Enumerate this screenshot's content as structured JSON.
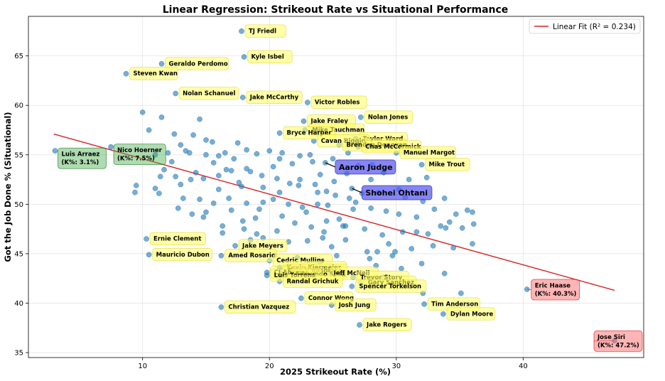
{
  "chart_data": {
    "type": "scatter",
    "title": "Linear Regression: Strikeout Rate vs Situational Performance",
    "xlabel": "2025 Strikeout Rate (%)",
    "ylabel": "Got the Job Done % (Situational)",
    "xlim": [
      1.0,
      49.5
    ],
    "ylim": [
      34.5,
      69.0
    ],
    "xticks": [
      10,
      20,
      30,
      40
    ],
    "yticks": [
      35,
      40,
      45,
      50,
      55,
      60,
      65
    ],
    "grid": true,
    "legend": {
      "label": "Linear Fit (R² = 0.234)",
      "position": "top-right",
      "color": "#d62728"
    },
    "fit": {
      "x0": 3.0,
      "y0": 57.1,
      "x1": 47.2,
      "y1": 41.3
    },
    "point_color": "#1f77b4",
    "labeled_points": [
      {
        "name": "TJ Friedl",
        "x": 17.8,
        "y": 67.5,
        "style": "yellow"
      },
      {
        "name": "Kyle Isbel",
        "x": 18.0,
        "y": 64.9,
        "style": "yellow"
      },
      {
        "name": "Geraldo Perdomo",
        "x": 11.5,
        "y": 64.2,
        "style": "yellow"
      },
      {
        "name": "Steven Kwan",
        "x": 8.7,
        "y": 63.2,
        "style": "yellow"
      },
      {
        "name": "Nolan Schanuel",
        "x": 12.6,
        "y": 61.2,
        "style": "yellow"
      },
      {
        "name": "Jake McCarthy",
        "x": 17.9,
        "y": 60.8,
        "style": "yellow"
      },
      {
        "name": "Victor Robles",
        "x": 23.0,
        "y": 60.3,
        "style": "yellow"
      },
      {
        "name": "Nolan Jones",
        "x": 27.2,
        "y": 58.8,
        "style": "yellow"
      },
      {
        "name": "Jake Fraley",
        "x": 22.7,
        "y": 58.4,
        "style": "yellow"
      },
      {
        "name": "Mike Tauchman",
        "x": 22.8,
        "y": 57.5,
        "style": "yellow"
      },
      {
        "name": "Bryce Harper",
        "x": 20.8,
        "y": 57.2,
        "style": "yellow"
      },
      {
        "name": "Taylor Ward",
        "x": 26.8,
        "y": 56.6,
        "style": "yellow"
      },
      {
        "name": "Cavan Biggio",
        "x": 23.5,
        "y": 56.4,
        "style": "yellow"
      },
      {
        "name": "Brendan Donovan",
        "x": 25.5,
        "y": 56.0,
        "style": "yellow"
      },
      {
        "name": "Chas McCormick",
        "x": 27.0,
        "y": 55.8,
        "style": "yellow"
      },
      {
        "name": "Manuel Margot",
        "x": 30.0,
        "y": 55.2,
        "style": "yellow"
      },
      {
        "name": "Mike Trout",
        "x": 32.0,
        "y": 54.0,
        "style": "yellow"
      },
      {
        "name": "Aaron Judge",
        "x": 24.4,
        "y": 54.2,
        "style": "blue"
      },
      {
        "name": "Shohei Ohtani",
        "x": 26.5,
        "y": 51.6,
        "style": "blue"
      },
      {
        "name": "Luis Arraez",
        "x": 3.1,
        "y": 55.4,
        "note": "(K%: 3.1%)",
        "style": "green"
      },
      {
        "name": "Nico Hoerner",
        "x": 7.5,
        "y": 55.8,
        "note": "(K%: 7.5%)",
        "style": "green"
      },
      {
        "name": "Ernie Clement",
        "x": 10.3,
        "y": 46.5,
        "style": "yellow"
      },
      {
        "name": "Mauricio Dubon",
        "x": 10.5,
        "y": 44.9,
        "style": "yellow"
      },
      {
        "name": "Jake Meyers",
        "x": 17.3,
        "y": 45.8,
        "style": "yellow"
      },
      {
        "name": "Amed Rosario",
        "x": 16.2,
        "y": 44.8,
        "style": "yellow"
      },
      {
        "name": "Cedric Mullins",
        "x": 20.0,
        "y": 44.3,
        "style": "yellow"
      },
      {
        "name": "Kevin Kiermaier",
        "x": 20.8,
        "y": 43.6,
        "style": "yellow"
      },
      {
        "name": "Kyle Higashioka",
        "x": 20.9,
        "y": 43.3,
        "style": "yellow"
      },
      {
        "name": "CJ Abrams",
        "x": 19.8,
        "y": 43.1,
        "style": "yellow"
      },
      {
        "name": "Edmundo Sosa",
        "x": 21.5,
        "y": 42.9,
        "style": "yellow"
      },
      {
        "name": "Jeff McNeil",
        "x": 24.5,
        "y": 43.0,
        "style": "yellow"
      },
      {
        "name": "Luis Torrens",
        "x": 19.8,
        "y": 42.8,
        "style": "yellow"
      },
      {
        "name": "Trevor Story",
        "x": 26.6,
        "y": 42.6,
        "style": "yellow"
      },
      {
        "name": "Randal Grichuk",
        "x": 20.8,
        "y": 42.2,
        "style": "yellow"
      },
      {
        "name": "Gary Sanchez",
        "x": 27.2,
        "y": 42.1,
        "style": "yellow"
      },
      {
        "name": "Spencer Torkelson",
        "x": 26.5,
        "y": 41.7,
        "style": "yellow"
      },
      {
        "name": "Connor Wong",
        "x": 22.5,
        "y": 40.5,
        "style": "yellow"
      },
      {
        "name": "Christian Vazquez",
        "x": 16.2,
        "y": 39.6,
        "style": "yellow"
      },
      {
        "name": "Josh Jung",
        "x": 24.9,
        "y": 39.8,
        "style": "yellow"
      },
      {
        "name": "Tim Anderson",
        "x": 32.2,
        "y": 39.9,
        "style": "yellow"
      },
      {
        "name": "Dylan Moore",
        "x": 33.7,
        "y": 38.9,
        "style": "yellow"
      },
      {
        "name": "Jake Rogers",
        "x": 27.1,
        "y": 37.8,
        "style": "yellow"
      },
      {
        "name": "Eric Haase",
        "x": 40.3,
        "y": 41.4,
        "note": "(K%: 40.3%)",
        "style": "red"
      },
      {
        "name": "Jose Siri",
        "x": 47.2,
        "y": 36.2,
        "note": "(K%: 47.2%)",
        "style": "red"
      }
    ],
    "points": [
      [
        10.0,
        59.3
      ],
      [
        11.5,
        58.8
      ],
      [
        12.5,
        57.1
      ],
      [
        14.5,
        58.6
      ],
      [
        10.5,
        57.5
      ],
      [
        13.0,
        56.0
      ],
      [
        14.0,
        57.0
      ],
      [
        15.5,
        56.3
      ],
      [
        16.5,
        55.2
      ],
      [
        17.5,
        56.2
      ],
      [
        12.0,
        55.2
      ],
      [
        15.0,
        55.0
      ],
      [
        11.7,
        53.5
      ],
      [
        12.3,
        54.3
      ],
      [
        13.4,
        55.4
      ],
      [
        16.0,
        54.9
      ],
      [
        17.0,
        53.4
      ],
      [
        18.2,
        55.5
      ],
      [
        19.0,
        55.1
      ],
      [
        20.0,
        55.4
      ],
      [
        21.0,
        55.2
      ],
      [
        21.8,
        54.1
      ],
      [
        23.2,
        55.0
      ],
      [
        25.0,
        54.6
      ],
      [
        26.2,
        55.2
      ],
      [
        28.1,
        54.0
      ],
      [
        29.0,
        53.2
      ],
      [
        31.0,
        52.5
      ],
      [
        32.4,
        52.7
      ],
      [
        30.2,
        51.5
      ],
      [
        9.5,
        51.9
      ],
      [
        11.0,
        51.6
      ],
      [
        11.4,
        52.8
      ],
      [
        12.6,
        52.8
      ],
      [
        13.8,
        52.5
      ],
      [
        14.8,
        52.6
      ],
      [
        16.0,
        52.9
      ],
      [
        17.6,
        52.2
      ],
      [
        18.5,
        53.3
      ],
      [
        19.4,
        52.9
      ],
      [
        20.6,
        52.6
      ],
      [
        21.6,
        52.1
      ],
      [
        22.3,
        51.9
      ],
      [
        23.6,
        52.0
      ],
      [
        25.1,
        52.3
      ],
      [
        26.3,
        50.6
      ],
      [
        27.3,
        51.1
      ],
      [
        28.6,
        51.2
      ],
      [
        30.7,
        50.7
      ],
      [
        32.1,
        50.3
      ],
      [
        9.4,
        51.2
      ],
      [
        11.3,
        51.1
      ],
      [
        13.2,
        50.6
      ],
      [
        14.5,
        50.5
      ],
      [
        15.6,
        50.1
      ],
      [
        16.8,
        50.6
      ],
      [
        18.2,
        50.1
      ],
      [
        19.5,
        50.2
      ],
      [
        20.3,
        50.5
      ],
      [
        21.5,
        50.0
      ],
      [
        22.6,
        49.7
      ],
      [
        23.8,
        50.0
      ],
      [
        24.6,
        49.9
      ],
      [
        26.6,
        49.5
      ],
      [
        28.0,
        49.6
      ],
      [
        29.2,
        49.3
      ],
      [
        31.6,
        48.7
      ],
      [
        33.8,
        50.6
      ],
      [
        34.7,
        49.0
      ],
      [
        36.0,
        49.2
      ],
      [
        12.8,
        49.6
      ],
      [
        14.8,
        48.7
      ],
      [
        16.3,
        47.8
      ],
      [
        17.9,
        48.3
      ],
      [
        18.9,
        48.6
      ],
      [
        20.6,
        47.3
      ],
      [
        22.0,
        48.1
      ],
      [
        23.3,
        47.7
      ],
      [
        24.3,
        47.2
      ],
      [
        25.8,
        47.8
      ],
      [
        27.5,
        47.5
      ],
      [
        28.9,
        46.9
      ],
      [
        30.5,
        47.2
      ],
      [
        32.5,
        47.0
      ],
      [
        33.5,
        47.8
      ],
      [
        35.2,
        47.6
      ],
      [
        36.1,
        48.0
      ],
      [
        13.9,
        49.0
      ],
      [
        16.3,
        47.1
      ],
      [
        18.5,
        46.4
      ],
      [
        19.5,
        46.6
      ],
      [
        21.5,
        46.2
      ],
      [
        23.0,
        46.3
      ],
      [
        24.9,
        45.7
      ],
      [
        26.0,
        46.4
      ],
      [
        27.7,
        45.2
      ],
      [
        29.4,
        46.0
      ],
      [
        31.2,
        45.5
      ],
      [
        32.9,
        45.8
      ],
      [
        34.5,
        45.6
      ],
      [
        36.0,
        46.0
      ],
      [
        20.4,
        44.8
      ],
      [
        22.2,
        44.6
      ],
      [
        24.0,
        44.2
      ],
      [
        25.3,
        44.8
      ],
      [
        27.9,
        44.5
      ],
      [
        29.7,
        44.8
      ],
      [
        32.0,
        44.0
      ],
      [
        33.8,
        43.0
      ],
      [
        28.4,
        43.8
      ],
      [
        30.4,
        43.5
      ],
      [
        29.0,
        42.6
      ],
      [
        30.1,
        42.0
      ],
      [
        32.1,
        41.0
      ],
      [
        35.1,
        41.0
      ],
      [
        15.0,
        56.5
      ],
      [
        13.7,
        55.2
      ],
      [
        15.6,
        54.2
      ],
      [
        17.2,
        54.6
      ],
      [
        20.8,
        54.6
      ],
      [
        22.4,
        54.9
      ],
      [
        23.4,
        54.3
      ],
      [
        18.2,
        53.6
      ],
      [
        14.2,
        53.2
      ],
      [
        16.6,
        53.5
      ],
      [
        26.1,
        53.1
      ],
      [
        27.0,
        53.9
      ],
      [
        24.0,
        53.0
      ],
      [
        22.4,
        52.5
      ],
      [
        19.5,
        51.7
      ],
      [
        16.0,
        51.5
      ],
      [
        24.5,
        51.3
      ],
      [
        20.8,
        51.2
      ],
      [
        17.8,
        51.8
      ],
      [
        13.0,
        52.0
      ],
      [
        28.0,
        52.5
      ],
      [
        25.2,
        50.9
      ],
      [
        19.2,
        49.5
      ],
      [
        22.9,
        49.2
      ],
      [
        25.5,
        48.5
      ],
      [
        21.0,
        48.8
      ],
      [
        17.0,
        49.4
      ],
      [
        15.0,
        49.2
      ],
      [
        18.0,
        47.5
      ],
      [
        26.0,
        47.8
      ],
      [
        24.2,
        46.6
      ],
      [
        19.0,
        47.0
      ],
      [
        30.2,
        49.0
      ],
      [
        33.0,
        49.5
      ],
      [
        34.2,
        48.2
      ],
      [
        31.6,
        47.2
      ],
      [
        33.9,
        47.6
      ],
      [
        29.9,
        45.2
      ],
      [
        28.5,
        45.2
      ],
      [
        35.6,
        49.4
      ],
      [
        11.0,
        55.0
      ],
      [
        24.5,
        48.3
      ],
      [
        23.8,
        51.2
      ],
      [
        26.8,
        50.2
      ],
      [
        20.3,
        53.8
      ]
    ]
  }
}
